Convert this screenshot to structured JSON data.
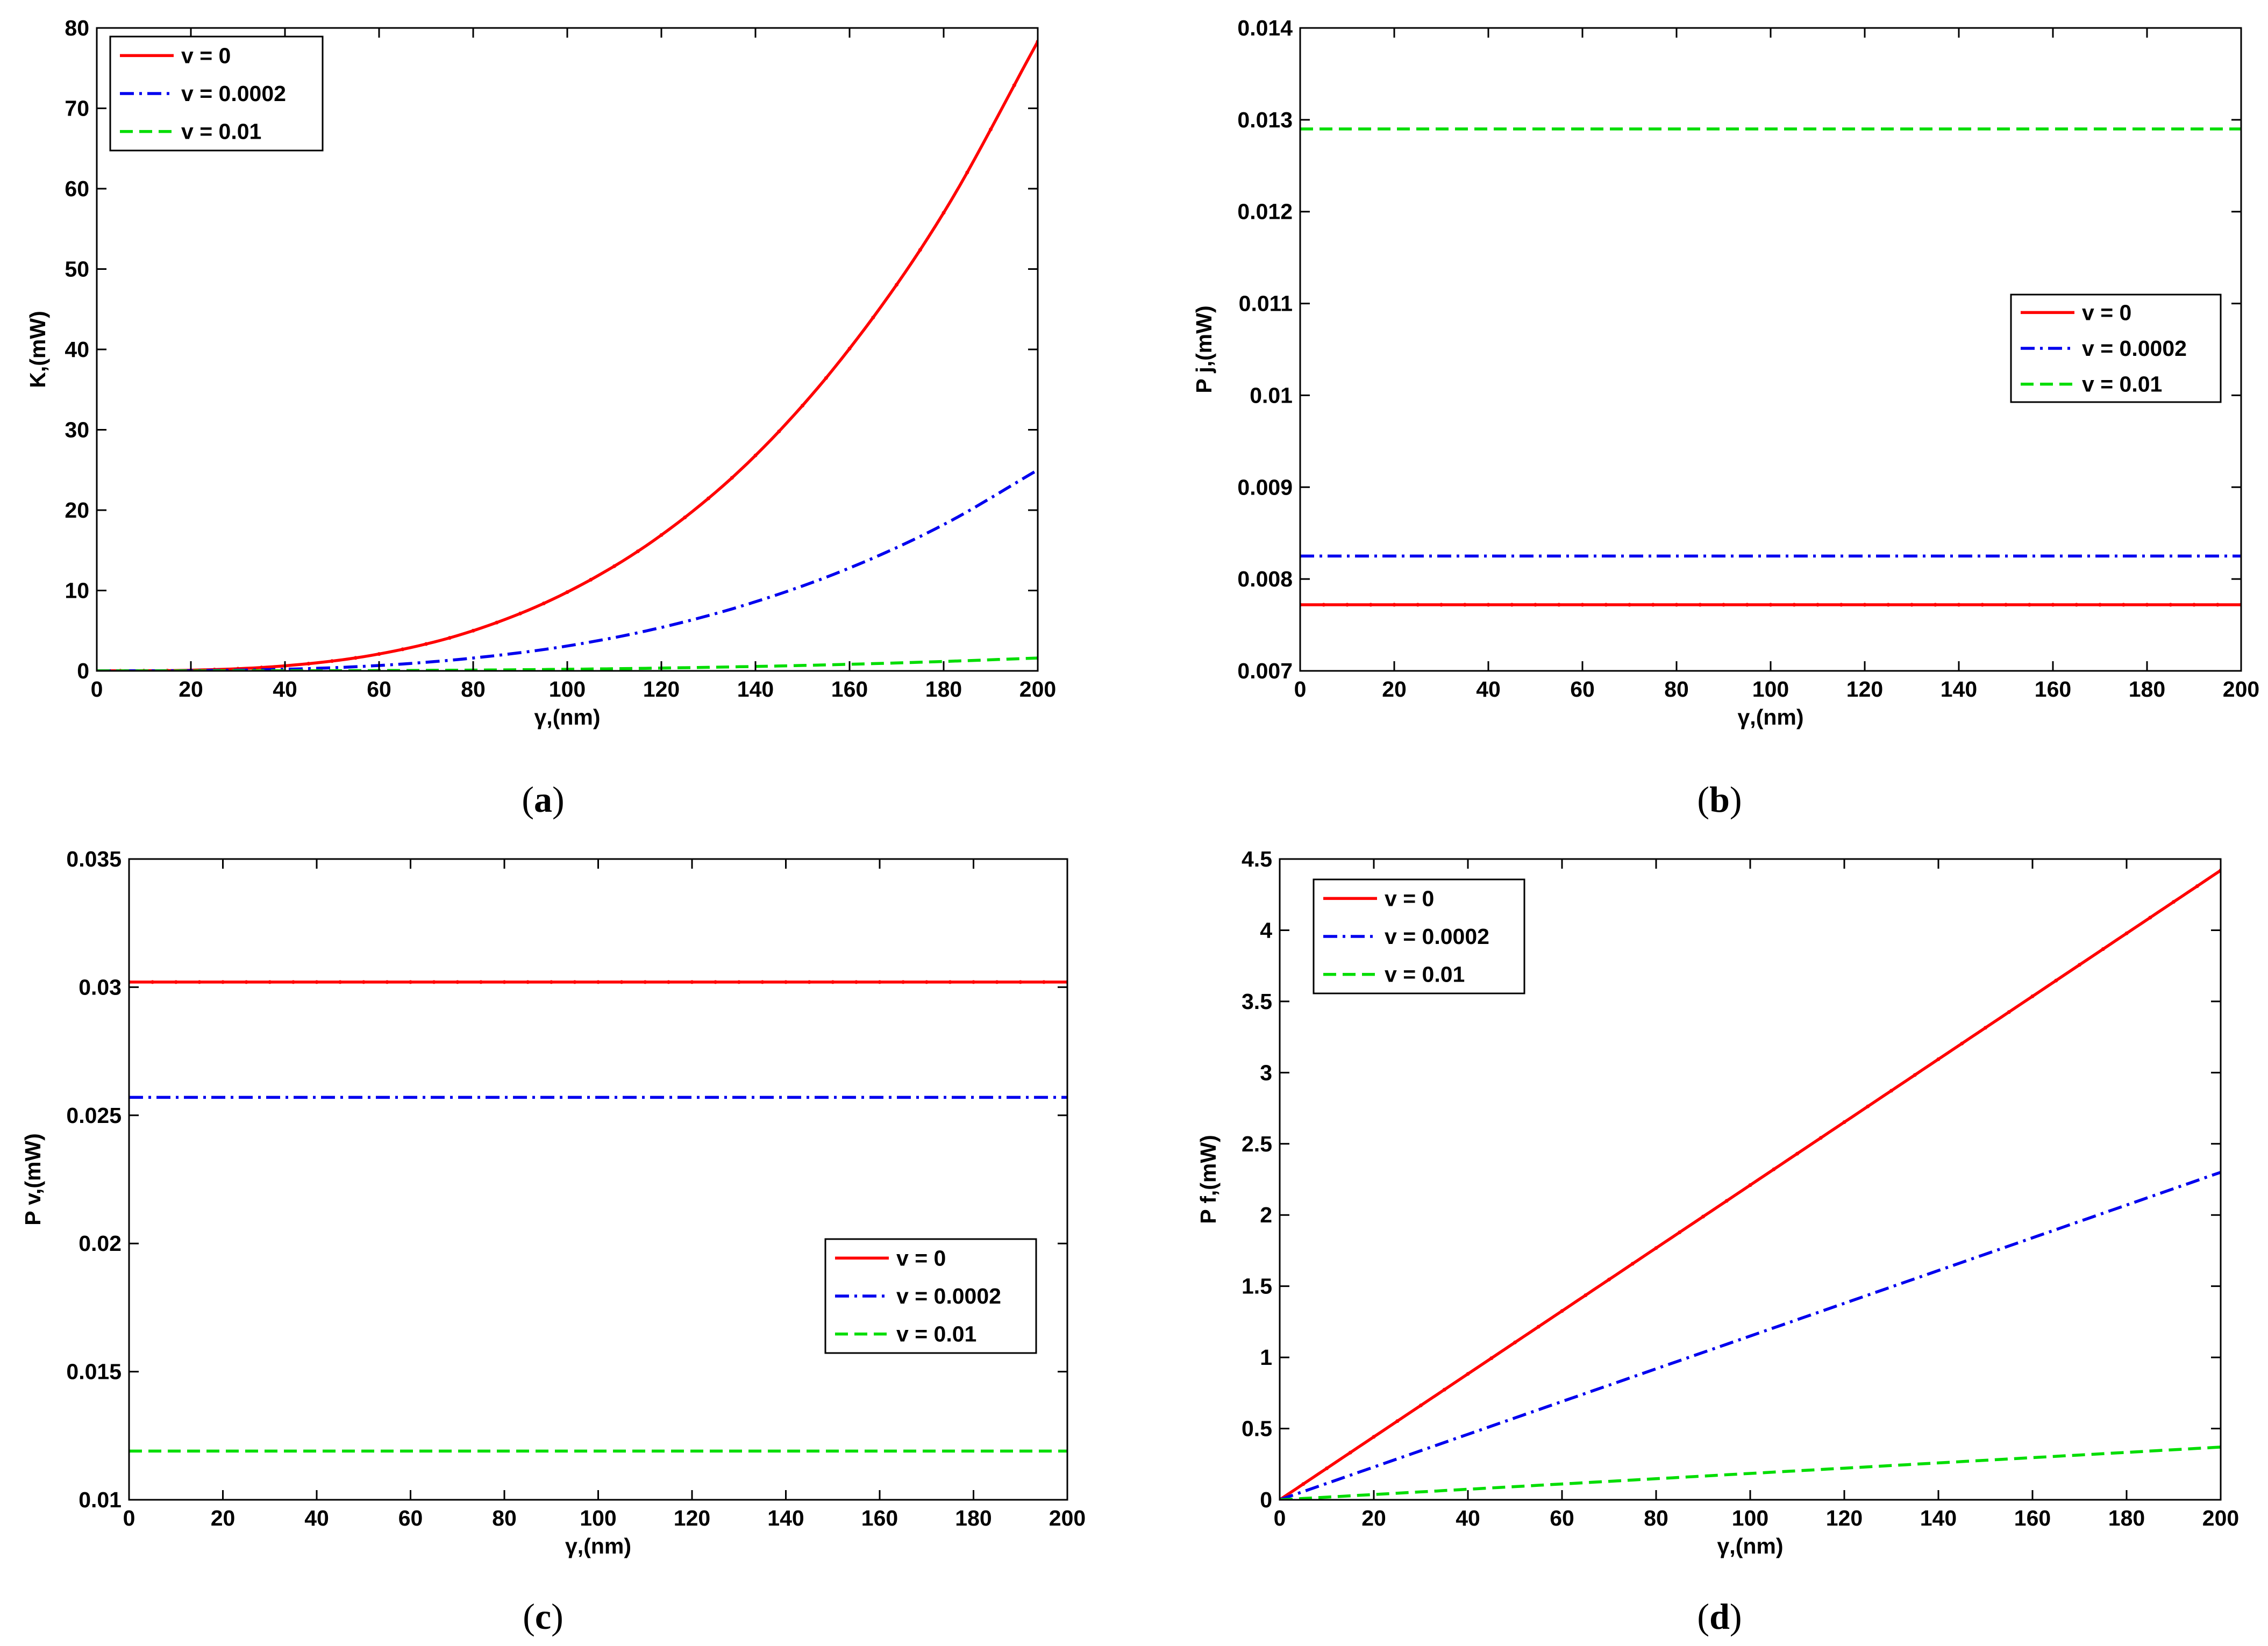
{
  "figure": {
    "legend_labels": [
      "v = 0",
      "v = 0.0002",
      "v = 0.01"
    ],
    "series_colors": [
      "#ff0000",
      "#0000ee",
      "#00dd00"
    ]
  },
  "chart_data": [
    {
      "id": "a",
      "type": "line",
      "caption": "a",
      "xlabel": "γ,(nm)",
      "ylabel": "K,(mW)",
      "xlim": [
        0,
        200
      ],
      "ylim": [
        0,
        80
      ],
      "xticks": [
        0,
        20,
        40,
        60,
        80,
        100,
        120,
        140,
        160,
        180,
        200
      ],
      "yticks": [
        0,
        10,
        20,
        30,
        40,
        50,
        60,
        70,
        80
      ],
      "ytick_labels": [
        "0",
        "10",
        "20",
        "30",
        "40",
        "50",
        "60",
        "70",
        "80"
      ],
      "legend_position": "top-left",
      "x": [
        0,
        20,
        40,
        60,
        80,
        100,
        120,
        140,
        160,
        180,
        200
      ],
      "series": [
        {
          "name": "v = 0",
          "style": "solid",
          "values": [
            0,
            0.08,
            0.63,
            2.1,
            5.0,
            9.8,
            16.9,
            26.8,
            40.1,
            57.0,
            78.3
          ]
        },
        {
          "name": "v = 0.0002",
          "style": "dashdot",
          "values": [
            0,
            0.03,
            0.2,
            0.67,
            1.6,
            3.1,
            5.4,
            8.6,
            12.8,
            18.2,
            25.0
          ]
        },
        {
          "name": "v = 0.01",
          "style": "dashed",
          "values": [
            0,
            0.002,
            0.013,
            0.04,
            0.1,
            0.2,
            0.35,
            0.55,
            0.82,
            1.17,
            1.6
          ]
        }
      ]
    },
    {
      "id": "b",
      "type": "line",
      "caption": "b",
      "xlabel": "γ,(nm)",
      "ylabel": "P j,(mW)",
      "xlim": [
        0,
        200
      ],
      "ylim": [
        0.007,
        0.014
      ],
      "xticks": [
        0,
        20,
        40,
        60,
        80,
        100,
        120,
        140,
        160,
        180,
        200
      ],
      "yticks": [
        0.007,
        0.008,
        0.009,
        0.01,
        0.011,
        0.012,
        0.013,
        0.014
      ],
      "ytick_labels": [
        "0.007",
        "0.008",
        "0.009",
        "0.01",
        "0.011",
        "0.012",
        "0.013",
        "0.014"
      ],
      "legend_position": "center-right",
      "x": [
        0,
        200
      ],
      "series": [
        {
          "name": "v = 0",
          "style": "solid",
          "values": [
            0.00772,
            0.00772
          ]
        },
        {
          "name": "v = 0.0002",
          "style": "dashdot",
          "values": [
            0.00825,
            0.00825
          ]
        },
        {
          "name": "v = 0.01",
          "style": "dashed",
          "values": [
            0.0129,
            0.0129
          ]
        }
      ]
    },
    {
      "id": "c",
      "type": "line",
      "caption": "c",
      "xlabel": "γ,(nm)",
      "ylabel": "P v,(mW)",
      "xlim": [
        0,
        200
      ],
      "ylim": [
        0.01,
        0.035
      ],
      "xticks": [
        0,
        20,
        40,
        60,
        80,
        100,
        120,
        140,
        160,
        180,
        200
      ],
      "yticks": [
        0.01,
        0.015,
        0.02,
        0.025,
        0.03,
        0.035
      ],
      "ytick_labels": [
        "0.01",
        "0.015",
        "0.02",
        "0.025",
        "0.03",
        "0.035"
      ],
      "legend_position": "lower-right",
      "x": [
        0,
        200
      ],
      "series": [
        {
          "name": "v = 0",
          "style": "solid",
          "values": [
            0.0302,
            0.0302
          ]
        },
        {
          "name": "v = 0.0002",
          "style": "dashdot",
          "values": [
            0.0257,
            0.0257
          ]
        },
        {
          "name": "v = 0.01",
          "style": "dashed",
          "values": [
            0.0119,
            0.0119
          ]
        }
      ]
    },
    {
      "id": "d",
      "type": "line",
      "caption": "d",
      "xlabel": "γ,(nm)",
      "ylabel": "P f,(mW)",
      "xlim": [
        0,
        200
      ],
      "ylim": [
        0,
        4.5
      ],
      "xticks": [
        0,
        20,
        40,
        60,
        80,
        100,
        120,
        140,
        160,
        180,
        200
      ],
      "yticks": [
        0,
        0.5,
        1,
        1.5,
        2,
        2.5,
        3,
        3.5,
        4,
        4.5
      ],
      "ytick_labels": [
        "0",
        "0.5",
        "1",
        "1.5",
        "2",
        "2.5",
        "3",
        "3.5",
        "4",
        "4.5"
      ],
      "legend_position": "top-left",
      "x": [
        0,
        200
      ],
      "series": [
        {
          "name": "v = 0",
          "style": "solid",
          "values": [
            0,
            4.42
          ]
        },
        {
          "name": "v = 0.0002",
          "style": "dashdot",
          "values": [
            0,
            2.3
          ]
        },
        {
          "name": "v = 0.01",
          "style": "dashed",
          "values": [
            0,
            0.37
          ]
        }
      ]
    }
  ]
}
